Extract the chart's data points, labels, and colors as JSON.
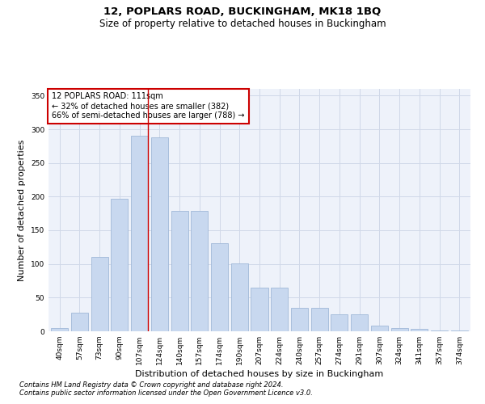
{
  "title1": "12, POPLARS ROAD, BUCKINGHAM, MK18 1BQ",
  "title2": "Size of property relative to detached houses in Buckingham",
  "xlabel": "Distribution of detached houses by size in Buckingham",
  "ylabel": "Number of detached properties",
  "categories": [
    "40sqm",
    "57sqm",
    "73sqm",
    "90sqm",
    "107sqm",
    "124sqm",
    "140sqm",
    "157sqm",
    "174sqm",
    "190sqm",
    "207sqm",
    "224sqm",
    "240sqm",
    "257sqm",
    "274sqm",
    "291sqm",
    "307sqm",
    "324sqm",
    "341sqm",
    "357sqm",
    "374sqm"
  ],
  "values": [
    5,
    28,
    110,
    197,
    290,
    288,
    179,
    179,
    131,
    101,
    65,
    65,
    35,
    35,
    25,
    25,
    9,
    5,
    4,
    1,
    1
  ],
  "bar_color": "#c8d8ef",
  "bar_edge_color": "#a0b8d8",
  "grid_color": "#d0d8e8",
  "bg_color": "#eef2fa",
  "red_line_x": 4.43,
  "annotation_text": "12 POPLARS ROAD: 111sqm\n← 32% of detached houses are smaller (382)\n66% of semi-detached houses are larger (788) →",
  "annotation_box_color": "#ffffff",
  "annotation_box_edge": "#cc0000",
  "footnote1": "Contains HM Land Registry data © Crown copyright and database right 2024.",
  "footnote2": "Contains public sector information licensed under the Open Government Licence v3.0.",
  "ylim": [
    0,
    360
  ],
  "yticks": [
    0,
    50,
    100,
    150,
    200,
    250,
    300,
    350
  ],
  "title1_fontsize": 9.5,
  "title2_fontsize": 8.5,
  "xlabel_fontsize": 8,
  "ylabel_fontsize": 8,
  "tick_fontsize": 6.5,
  "annot_fontsize": 7,
  "footnote_fontsize": 6
}
